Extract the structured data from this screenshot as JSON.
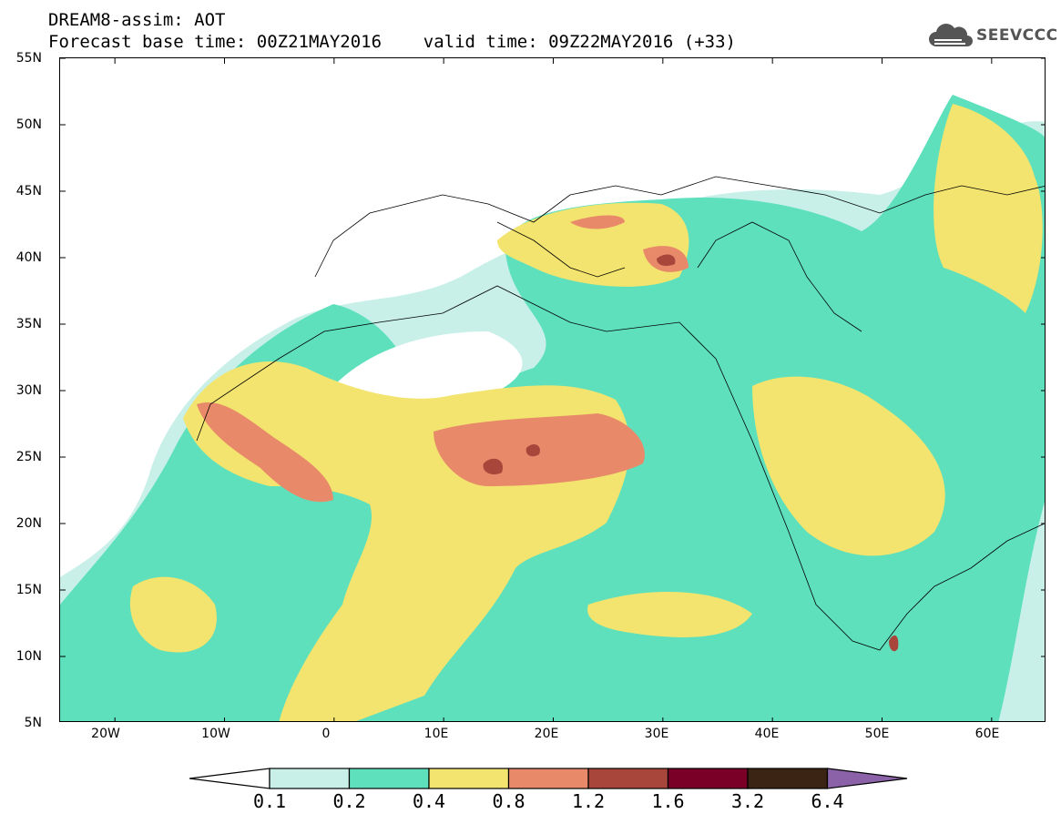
{
  "title": {
    "line1": "DREAM8-assim: AOT",
    "line2": "Forecast base time: 00Z21MAY2016    valid time: 09Z22MAY2016 (+33)"
  },
  "logo": {
    "text": "SEEVCCC",
    "icon": "cloud-icon"
  },
  "map": {
    "lat_labels": [
      "55N",
      "50N",
      "45N",
      "40N",
      "35N",
      "30N",
      "25N",
      "20N",
      "15N",
      "10N",
      "5N"
    ],
    "lon_labels": [
      "20W",
      "10W",
      "0",
      "10E",
      "20E",
      "30E",
      "40E",
      "50E",
      "60E"
    ],
    "lat_range": [
      5,
      55
    ],
    "lon_range": [
      -25,
      65
    ]
  },
  "colorbar": {
    "labels": [
      "0.1",
      "0.2",
      "0.4",
      "0.8",
      "1.2",
      "1.6",
      "3.2",
      "6.4"
    ],
    "colors": [
      "#c8f0e8",
      "#5ee0bc",
      "#f2e46e",
      "#e8896a",
      "#a8463c",
      "#7a0028",
      "#3c2414",
      "#8b62a8"
    ]
  }
}
